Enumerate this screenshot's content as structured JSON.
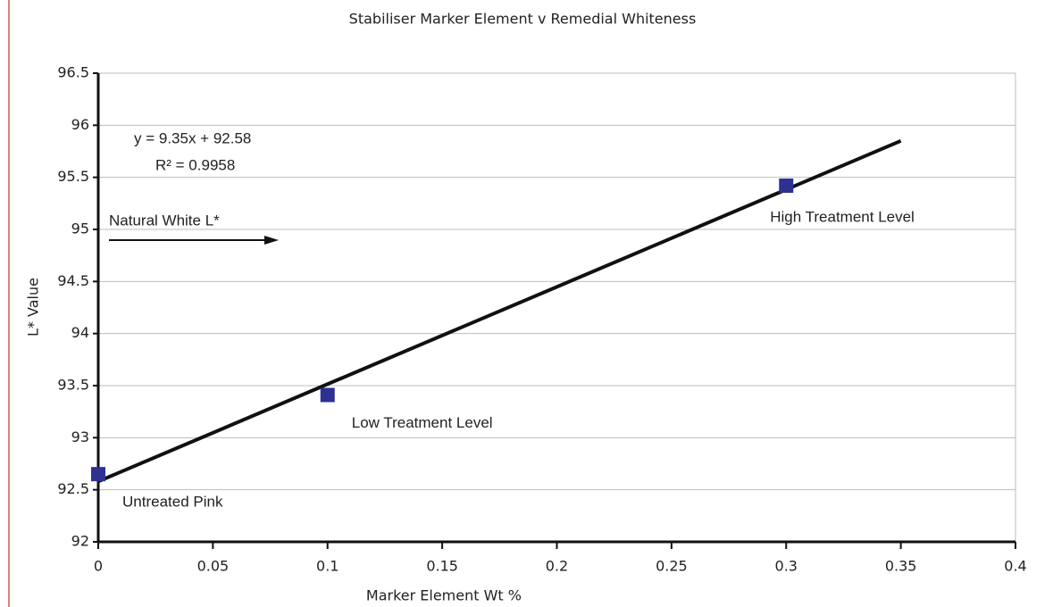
{
  "chart_data": {
    "type": "scatter",
    "title": "Stabiliser Marker Element v Remedial Whiteness",
    "x_label": "Marker Element Wt %",
    "y_label": "L* Value",
    "xlim": [
      0,
      0.4
    ],
    "xticks": [
      0,
      0.05,
      0.1,
      0.15,
      0.2,
      0.25,
      0.3,
      0.35,
      0.4
    ],
    "ylim": [
      92,
      96.5
    ],
    "yticks": [
      92,
      92.5,
      93,
      93.5,
      94,
      94.5,
      95,
      95.5,
      96,
      96.5
    ],
    "grid": true,
    "series": [
      {
        "color": "#2e3192",
        "x": [
          0,
          0.1,
          0.3
        ],
        "values": [
          92.65,
          93.41,
          95.42
        ],
        "point_labels": [
          "Untreated Pink",
          "Low Treatment Level",
          "High Treatment Level"
        ]
      }
    ],
    "trendline": {
      "color": "#111111",
      "x": [
        0,
        0.35
      ],
      "values": [
        92.58,
        95.85
      ]
    },
    "annotations": [
      "y = 9.35x + 92.58",
      "R² = 0.9958",
      "Natural White L*"
    ]
  }
}
